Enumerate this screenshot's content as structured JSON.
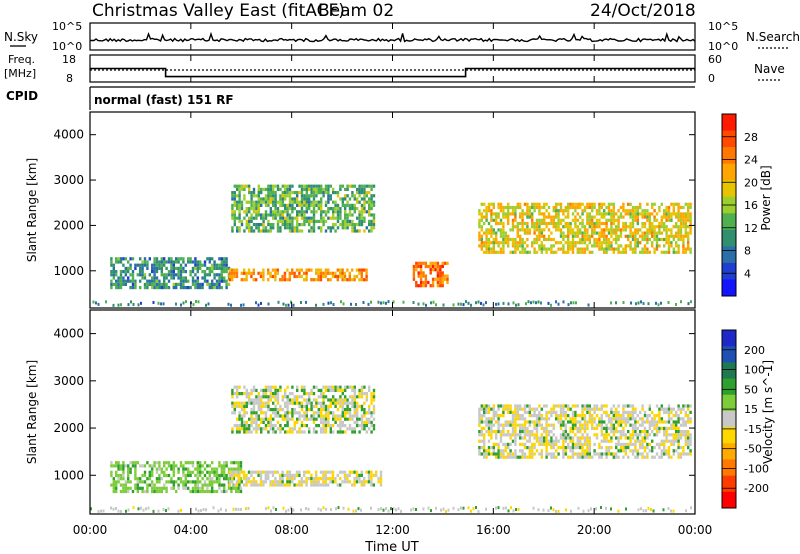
{
  "header": {
    "title_left": "Christmas Valley East (fitACF)",
    "beam": "Beam 02",
    "date": "24/Oct/2018"
  },
  "nsky_panel": {
    "left_label": "N.Sky",
    "right_label": "N.Search",
    "left_ticks": [
      "10^5",
      "10^0"
    ],
    "right_ticks": [
      "10^5",
      "10^0"
    ]
  },
  "freq_panel": {
    "left_label_line1": "Freq.",
    "left_label_line2": "[MHz]",
    "right_label": "Nave",
    "left_ticks": [
      "18",
      "8"
    ],
    "right_ticks": [
      "60",
      "0"
    ]
  },
  "cpid": {
    "label": "CPID",
    "value": "normal (fast) 151 RF"
  },
  "power_panel": {
    "ylabel": "Slant Range [km]",
    "colorbar_label": "Power [dB]",
    "colorbar_ticks": [
      "28",
      "24",
      "20",
      "16",
      "12",
      "8",
      "4"
    ],
    "colorbar_colors": [
      "#ff1a00",
      "#ff4a00",
      "#ff7800",
      "#ffa500",
      "#e6c400",
      "#9ccf2e",
      "#4fb04f",
      "#2f8f6f",
      "#2a6fa8",
      "#1f3fd0",
      "#1414ff"
    ]
  },
  "velocity_panel": {
    "ylabel": "Slant Range [km]",
    "colorbar_label": "Velocity [m s^-1]",
    "colorbar_ticks": [
      "200",
      "100",
      "50",
      "15",
      "-15",
      "-50",
      "-100",
      "-200"
    ],
    "colorbar_colors": [
      "#1e28c8",
      "#1e50b4",
      "#1e7850",
      "#2ea02e",
      "#7dcd3a",
      "#c8c8c8",
      "#ffd700",
      "#ffaa00",
      "#ff7800",
      "#ff3c00",
      "#ff0000"
    ]
  },
  "x_axis": {
    "label": "Time UT",
    "ticks": [
      "00:00",
      "04:00",
      "08:00",
      "12:00",
      "16:00",
      "20:00",
      "00:00"
    ]
  },
  "chart_data": [
    {
      "type": "line",
      "title": "N.Sky / N.Search",
      "x": [
        "00:00",
        "04:00",
        "08:00",
        "12:00",
        "16:00",
        "20:00",
        "24:00"
      ],
      "ylim": [
        1,
        100000
      ],
      "log_scale": true,
      "series": []
    },
    {
      "type": "line",
      "title": "Freq. / Nave",
      "x": [
        0,
        3,
        3,
        14.9,
        14.9,
        24
      ],
      "ylim": [
        8,
        18
      ],
      "series": [
        {
          "name": "Freq.",
          "values": [
            13,
            13,
            10,
            10,
            13,
            13
          ]
        }
      ]
    },
    {
      "type": "heatmap",
      "title": "Power",
      "xlim": [
        0,
        24
      ],
      "ylim": [
        180,
        4500
      ],
      "xlabel": "Time UT",
      "ylabel": "Slant Range [km]",
      "colorbar_range": [
        0,
        30
      ],
      "regions": [
        {
          "t0": 0.8,
          "t1": 5.5,
          "r0": 650,
          "r1": 1300,
          "power": 9
        },
        {
          "t0": 5.5,
          "t1": 11.0,
          "r0": 780,
          "r1": 1050,
          "power": 22
        },
        {
          "t0": 12.8,
          "t1": 14.2,
          "r0": 700,
          "r1": 1200,
          "power": 25
        },
        {
          "t0": 5.6,
          "t1": 11.3,
          "r0": 1900,
          "r1": 2900,
          "power": 12
        },
        {
          "t0": 15.4,
          "t1": 23.8,
          "r0": 1400,
          "r1": 2500,
          "power": 18
        }
      ]
    },
    {
      "type": "heatmap",
      "title": "Velocity",
      "xlim": [
        0,
        24
      ],
      "ylim": [
        180,
        4500
      ],
      "xlabel": "Time UT",
      "ylabel": "Slant Range [km]",
      "colorbar_range": [
        -200,
        200
      ],
      "regions": [
        {
          "t0": 0.8,
          "t1": 6.0,
          "r0": 650,
          "r1": 1300,
          "velocity": 40
        },
        {
          "t0": 5.5,
          "t1": 11.5,
          "r0": 780,
          "r1": 1100,
          "velocity": -10
        },
        {
          "t0": 5.6,
          "t1": 11.3,
          "r0": 1900,
          "r1": 2900,
          "velocity": 0
        },
        {
          "t0": 15.4,
          "t1": 23.8,
          "r0": 1400,
          "r1": 2500,
          "velocity": -5
        }
      ]
    }
  ]
}
